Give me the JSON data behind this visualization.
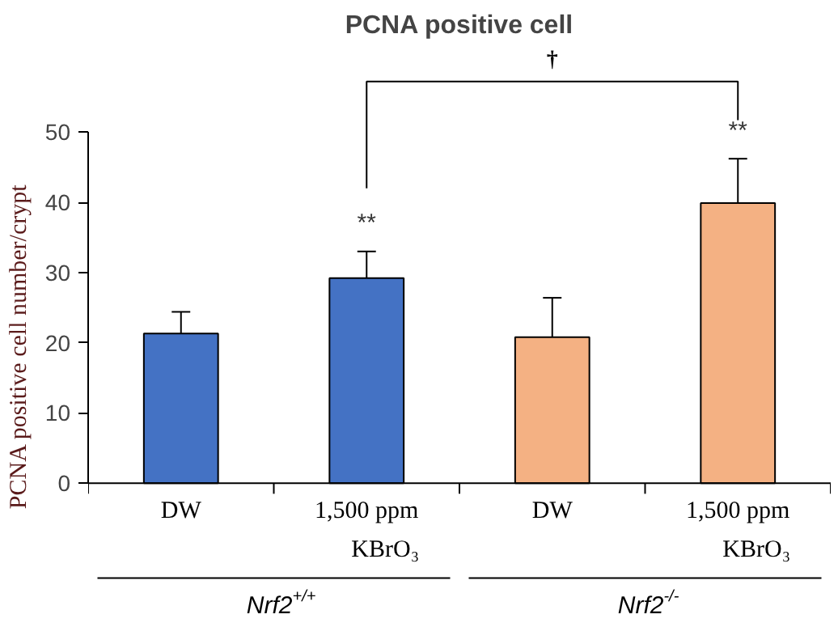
{
  "chart_data": {
    "type": "bar",
    "title": "PCNA positive cell",
    "ylabel": "PCNA positive cell number/crypt",
    "categories": [
      "DW",
      "1,500 ppm KBrO₃",
      "DW",
      "1,500 ppm KBrO₃"
    ],
    "values": [
      21.3,
      29.2,
      20.8,
      39.9
    ],
    "colors": [
      "#4472c4",
      "#4472c4",
      "#f4b183",
      "#f4b183"
    ],
    "errors": [
      [
        21.3,
        24.4
      ],
      [
        29.2,
        33.0
      ],
      [
        20.8,
        26.4
      ],
      [
        39.9,
        46.2
      ]
    ],
    "value_labels": [
      null,
      "**",
      null,
      "**"
    ],
    "annotations": [
      "†",
      "Nrf2$^{+/+}$",
      "Nrf2$^{-/-}$"
    ],
    "ylim": [
      0,
      50
    ],
    "yticks": [
      0,
      10,
      20,
      30,
      40,
      50
    ],
    "grid": false
  }
}
